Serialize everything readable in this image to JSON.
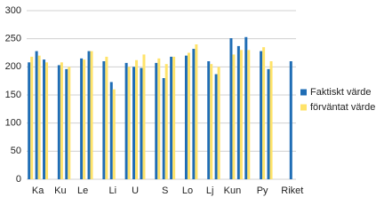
{
  "chart_data": {
    "type": "bar",
    "categories": [
      null,
      "Ka",
      null,
      null,
      "Ku",
      null,
      null,
      "Le",
      null,
      null,
      null,
      "Li",
      null,
      null,
      "U",
      null,
      null,
      null,
      "S",
      null,
      null,
      "Lo",
      null,
      null,
      "Lj",
      null,
      null,
      "Kun",
      null,
      null,
      null,
      "Py",
      null,
      null,
      null,
      "Riket"
    ],
    "series": [
      {
        "name": "Faktiskt värde",
        "color": "#1f6db5",
        "values": [
          208,
          228,
          213,
          null,
          203,
          196,
          null,
          215,
          228,
          null,
          210,
          173,
          null,
          207,
          200,
          198,
          null,
          207,
          180,
          218,
          null,
          220,
          232,
          null,
          210,
          187,
          null,
          251,
          237,
          253,
          null,
          228,
          196,
          null,
          null,
          210
        ]
      },
      {
        "name": "förväntat värde",
        "color": "#ffe36a",
        "values": [
          218,
          220,
          208,
          null,
          208,
          200,
          null,
          213,
          228,
          null,
          218,
          160,
          null,
          200,
          212,
          222,
          null,
          215,
          205,
          218,
          null,
          225,
          240,
          null,
          205,
          200,
          null,
          222,
          230,
          230,
          null,
          235,
          210,
          null,
          null,
          null
        ]
      }
    ],
    "ylim": [
      0,
      300
    ],
    "yticks": [
      0,
      50,
      100,
      150,
      200,
      250,
      300
    ],
    "grid": true,
    "legend": "right"
  }
}
